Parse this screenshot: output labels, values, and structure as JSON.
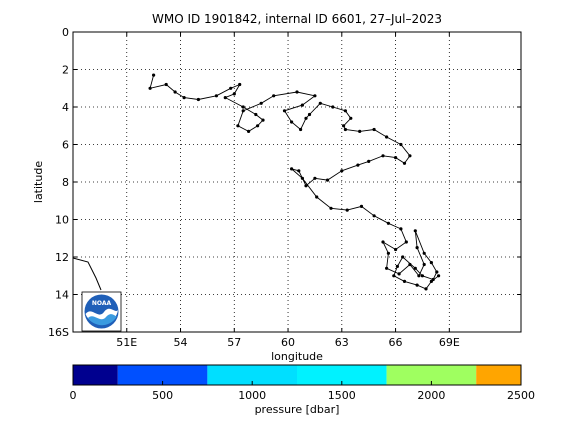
{
  "chart_data": {
    "type": "line",
    "title": "WMO ID 1901842, internal ID 6601, 27–Jul–2023",
    "xlabel": "longitude",
    "ylabel": "latitude",
    "xlim": [
      48,
      73
    ],
    "ylim": [
      16,
      0
    ],
    "xticks": [
      {
        "v": 51,
        "label": "51E"
      },
      {
        "v": 54,
        "label": "54"
      },
      {
        "v": 57,
        "label": "57"
      },
      {
        "v": 60,
        "label": "60"
      },
      {
        "v": 63,
        "label": "63"
      },
      {
        "v": 66,
        "label": "66"
      },
      {
        "v": 69,
        "label": "69E"
      }
    ],
    "yticks": [
      {
        "v": 0,
        "label": "0"
      },
      {
        "v": 2,
        "label": "2"
      },
      {
        "v": 4,
        "label": "4"
      },
      {
        "v": 6,
        "label": "6"
      },
      {
        "v": 8,
        "label": "8"
      },
      {
        "v": 10,
        "label": "10"
      },
      {
        "v": 12,
        "label": "12"
      },
      {
        "v": 14,
        "label": "14"
      },
      {
        "v": 16,
        "label": "16S"
      }
    ],
    "grid": true,
    "series": [
      {
        "points": [
          [
            52.5,
            2.3
          ],
          [
            52.3,
            3.0
          ],
          [
            53.2,
            2.8
          ],
          [
            53.7,
            3.2
          ],
          [
            54.2,
            3.5
          ],
          [
            55.0,
            3.6
          ],
          [
            56.0,
            3.4
          ],
          [
            56.8,
            3.0
          ],
          [
            57.3,
            2.8
          ],
          [
            57.0,
            3.3
          ],
          [
            56.5,
            3.5
          ],
          [
            57.5,
            4.0
          ],
          [
            58.2,
            4.4
          ],
          [
            58.6,
            4.7
          ],
          [
            58.3,
            5.0
          ],
          [
            57.8,
            5.3
          ],
          [
            57.2,
            5.0
          ],
          [
            57.5,
            4.2
          ],
          [
            58.5,
            3.8
          ],
          [
            59.2,
            3.4
          ],
          [
            60.5,
            3.2
          ],
          [
            61.5,
            3.4
          ],
          [
            60.8,
            3.9
          ],
          [
            59.8,
            4.2
          ],
          [
            60.2,
            4.8
          ],
          [
            60.7,
            5.2
          ],
          [
            61.0,
            4.6
          ],
          [
            61.2,
            4.4
          ],
          [
            61.8,
            3.8
          ],
          [
            62.5,
            4.0
          ],
          [
            63.2,
            4.2
          ],
          [
            63.5,
            4.6
          ],
          [
            63.1,
            5.0
          ],
          [
            63.2,
            5.2
          ],
          [
            64.0,
            5.3
          ],
          [
            64.8,
            5.2
          ],
          [
            65.5,
            5.6
          ],
          [
            66.3,
            6.0
          ],
          [
            66.8,
            6.6
          ],
          [
            66.5,
            7.0
          ],
          [
            66.0,
            6.7
          ],
          [
            65.3,
            6.6
          ],
          [
            64.5,
            6.9
          ],
          [
            63.9,
            7.1
          ],
          [
            63.0,
            7.4
          ],
          [
            62.2,
            7.9
          ],
          [
            61.5,
            7.8
          ],
          [
            61.0,
            8.2
          ],
          [
            60.6,
            7.4
          ],
          [
            60.2,
            7.3
          ],
          [
            60.8,
            7.8
          ],
          [
            61.6,
            8.8
          ],
          [
            62.4,
            9.4
          ],
          [
            63.3,
            9.5
          ],
          [
            64.1,
            9.3
          ],
          [
            64.8,
            9.8
          ],
          [
            65.6,
            10.2
          ],
          [
            66.3,
            10.5
          ],
          [
            66.6,
            11.2
          ],
          [
            66.0,
            11.6
          ],
          [
            65.3,
            11.2
          ],
          [
            65.6,
            11.8
          ],
          [
            65.5,
            12.6
          ],
          [
            66.2,
            12.9
          ],
          [
            66.8,
            12.4
          ],
          [
            67.3,
            13.0
          ],
          [
            67.6,
            12.4
          ],
          [
            67.2,
            11.5
          ],
          [
            67.1,
            10.6
          ],
          [
            67.6,
            11.8
          ],
          [
            68.0,
            12.3
          ],
          [
            68.3,
            12.8
          ],
          [
            68.1,
            13.2
          ],
          [
            67.5,
            13.0
          ],
          [
            67.1,
            12.6
          ],
          [
            66.4,
            12.0
          ],
          [
            66.1,
            12.5
          ],
          [
            65.9,
            13.0
          ],
          [
            66.5,
            13.3
          ],
          [
            67.2,
            13.5
          ],
          [
            67.7,
            13.7
          ],
          [
            68.0,
            13.3
          ],
          [
            68.4,
            13.0
          ]
        ]
      }
    ],
    "colorbar": {
      "label": "pressure [dbar]",
      "ticks": [
        0,
        500,
        1000,
        1500,
        2000,
        2500
      ],
      "segments": [
        {
          "from": 0,
          "to": 250,
          "color": "#00008f"
        },
        {
          "from": 250,
          "to": 750,
          "color": "#0050ff"
        },
        {
          "from": 750,
          "to": 1250,
          "color": "#00dfff"
        },
        {
          "from": 1250,
          "to": 1750,
          "color": "#00f2ff"
        },
        {
          "from": 1750,
          "to": 2250,
          "color": "#9fff60"
        },
        {
          "from": 2250,
          "to": 2500,
          "color": "#ffa500"
        }
      ]
    }
  },
  "logo": {
    "text": "NOAA"
  }
}
